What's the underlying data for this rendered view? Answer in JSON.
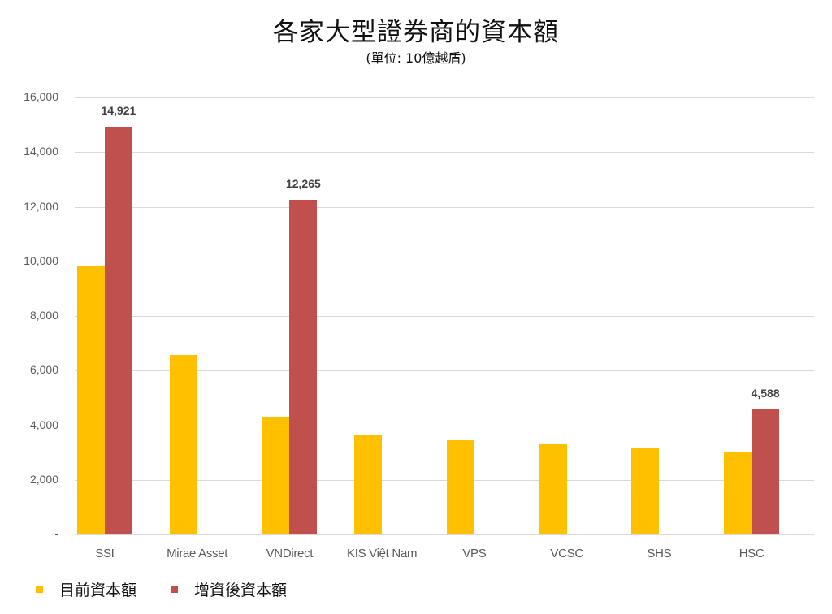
{
  "chart_data": {
    "type": "bar",
    "title": "各家大型證券商的資本額",
    "subtitle": "(單位: 10億越盾)",
    "xlabel": "",
    "ylabel": "",
    "ylim": [
      0,
      16000
    ],
    "yticks": [
      "-",
      "2,000",
      "4,000",
      "6,000",
      "8,000",
      "10,000",
      "12,000",
      "14,000",
      "16,000"
    ],
    "grid": true,
    "legend_position": "bottom-left",
    "categories": [
      "SSI",
      "Mirae Asset",
      "VNDirect",
      "KIS Việt Nam",
      "VPS",
      "VCSC",
      "SHS",
      "HSC"
    ],
    "series": [
      {
        "name": "目前資本額",
        "color": "#ffc000",
        "values": [
          9820,
          6580,
          4320,
          3660,
          3450,
          3300,
          3160,
          3040
        ]
      },
      {
        "name": "增資後資本額",
        "color": "#c0504d",
        "values": [
          14921,
          null,
          12265,
          null,
          null,
          null,
          null,
          4588
        ]
      }
    ],
    "data_labels": [
      {
        "category": "SSI",
        "series": "增資後資本額",
        "text": "14,921"
      },
      {
        "category": "VNDirect",
        "series": "增資後資本額",
        "text": "12,265"
      },
      {
        "category": "HSC",
        "series": "增資後資本額",
        "text": "4,588"
      }
    ]
  }
}
